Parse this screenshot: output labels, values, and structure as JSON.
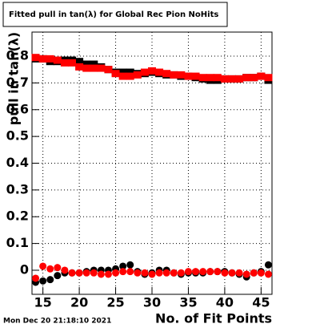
{
  "chart_data": {
    "type": "scatter",
    "title": "Fitted pull in tan(λ) for Global Rec Pion NoHits",
    "x_label": "No. of Fit Points",
    "y_label": "pull in tan(λ)",
    "timestamp": "Mon Dec 20 21:18:10 2021",
    "x": [
      14,
      15,
      16,
      17,
      18,
      19,
      20,
      21,
      22,
      23,
      24,
      25,
      26,
      27,
      28,
      29,
      30,
      31,
      32,
      33,
      34,
      35,
      36,
      37,
      38,
      39,
      40,
      41,
      42,
      43,
      44,
      45,
      46
    ],
    "series": [
      {
        "color": "#000000",
        "marker": "square",
        "values": [
          0.79,
          0.79,
          0.78,
          0.78,
          0.785,
          0.785,
          0.78,
          0.77,
          0.77,
          0.76,
          0.75,
          0.74,
          0.74,
          0.74,
          0.735,
          0.735,
          0.74,
          0.735,
          0.73,
          0.73,
          0.725,
          0.725,
          0.72,
          0.715,
          0.71,
          0.71,
          0.715,
          0.715,
          0.715,
          0.72,
          0.72,
          0.725,
          0.71
        ]
      },
      {
        "color": "#ff0000",
        "marker": "square",
        "values": [
          0.795,
          0.79,
          0.79,
          0.785,
          0.775,
          0.775,
          0.76,
          0.755,
          0.755,
          0.755,
          0.75,
          0.735,
          0.725,
          0.725,
          0.73,
          0.74,
          0.745,
          0.74,
          0.735,
          0.73,
          0.73,
          0.725,
          0.725,
          0.72,
          0.72,
          0.72,
          0.715,
          0.715,
          0.715,
          0.72,
          0.72,
          0.725,
          0.72
        ]
      },
      {
        "color": "#000000",
        "marker": "circle",
        "values": [
          -0.045,
          -0.04,
          -0.035,
          -0.02,
          -0.01,
          -0.01,
          -0.01,
          -0.005,
          0.0,
          0.0,
          0.0,
          0.005,
          0.015,
          0.02,
          -0.005,
          -0.015,
          -0.01,
          0.0,
          0.0,
          -0.01,
          -0.015,
          -0.01,
          -0.01,
          -0.01,
          -0.005,
          -0.005,
          -0.005,
          -0.01,
          -0.015,
          -0.025,
          -0.01,
          -0.005,
          0.02
        ]
      },
      {
        "color": "#ff0000",
        "marker": "circle",
        "values": [
          -0.03,
          0.015,
          0.005,
          0.01,
          0.0,
          -0.01,
          -0.01,
          -0.01,
          -0.01,
          -0.015,
          -0.015,
          -0.01,
          -0.005,
          -0.005,
          -0.01,
          -0.01,
          -0.015,
          -0.01,
          -0.01,
          -0.01,
          -0.01,
          -0.005,
          -0.005,
          -0.005,
          -0.005,
          -0.005,
          -0.01,
          -0.01,
          -0.01,
          -0.015,
          -0.01,
          -0.01,
          -0.015
        ]
      }
    ],
    "xlim": [
      13.5,
      46.5
    ],
    "ylim": [
      -0.09,
      0.89
    ],
    "xticks": [
      15,
      20,
      25,
      30,
      35,
      40,
      45
    ],
    "yticks": [
      0,
      0.1,
      0.2,
      0.3,
      0.4,
      0.5,
      0.6,
      0.7,
      0.8
    ],
    "grid": true
  }
}
